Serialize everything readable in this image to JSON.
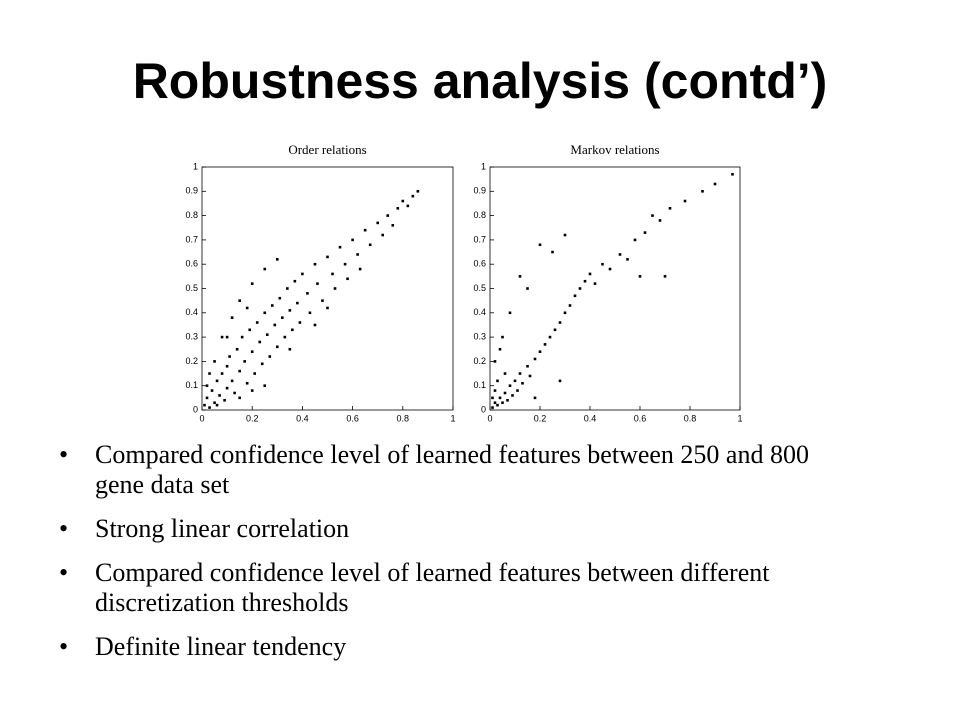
{
  "title": "Robustness analysis (contd’)",
  "chart_data": [
    {
      "type": "scatter",
      "title": "Order relations",
      "color": "#000000",
      "xlim": [
        0,
        1
      ],
      "ylim": [
        0,
        1
      ],
      "xticks": [
        0,
        0.2,
        0.4,
        0.6,
        0.8,
        1
      ],
      "yticks": [
        0,
        0.1,
        0.2,
        0.3,
        0.4,
        0.5,
        0.6,
        0.7,
        0.8,
        0.9,
        1
      ],
      "x": [
        0.01,
        0.02,
        0.03,
        0.04,
        0.05,
        0.06,
        0.07,
        0.08,
        0.09,
        0.1,
        0.1,
        0.11,
        0.12,
        0.13,
        0.14,
        0.15,
        0.16,
        0.17,
        0.18,
        0.19,
        0.2,
        0.21,
        0.22,
        0.23,
        0.24,
        0.25,
        0.26,
        0.27,
        0.28,
        0.29,
        0.3,
        0.31,
        0.32,
        0.33,
        0.34,
        0.35,
        0.36,
        0.37,
        0.38,
        0.39,
        0.4,
        0.42,
        0.43,
        0.45,
        0.46,
        0.48,
        0.5,
        0.52,
        0.53,
        0.55,
        0.57,
        0.58,
        0.6,
        0.62,
        0.63,
        0.65,
        0.67,
        0.7,
        0.72,
        0.74,
        0.76,
        0.78,
        0.8,
        0.82,
        0.84,
        0.86,
        0.05,
        0.08,
        0.12,
        0.15,
        0.2,
        0.25,
        0.3,
        0.03,
        0.1,
        0.18,
        0.35,
        0.45,
        0.5,
        0.15,
        0.25,
        0.02,
        0.06,
        0.2
      ],
      "values": [
        0.02,
        0.05,
        0.01,
        0.08,
        0.03,
        0.12,
        0.06,
        0.15,
        0.04,
        0.18,
        0.09,
        0.22,
        0.12,
        0.07,
        0.25,
        0.16,
        0.3,
        0.2,
        0.11,
        0.33,
        0.24,
        0.15,
        0.36,
        0.28,
        0.19,
        0.4,
        0.31,
        0.22,
        0.43,
        0.35,
        0.26,
        0.46,
        0.38,
        0.3,
        0.5,
        0.41,
        0.33,
        0.53,
        0.44,
        0.36,
        0.56,
        0.48,
        0.4,
        0.6,
        0.52,
        0.45,
        0.63,
        0.56,
        0.5,
        0.67,
        0.6,
        0.54,
        0.7,
        0.64,
        0.58,
        0.74,
        0.68,
        0.77,
        0.72,
        0.8,
        0.76,
        0.83,
        0.86,
        0.84,
        0.88,
        0.9,
        0.2,
        0.3,
        0.38,
        0.45,
        0.52,
        0.58,
        0.62,
        0.15,
        0.3,
        0.42,
        0.25,
        0.35,
        0.42,
        0.05,
        0.1,
        0.1,
        0.02,
        0.08
      ]
    },
    {
      "type": "scatter",
      "title": "Markov relations",
      "color": "#000000",
      "xlim": [
        0,
        1
      ],
      "ylim": [
        0,
        1
      ],
      "xticks": [
        0,
        0.2,
        0.4,
        0.6,
        0.8,
        1
      ],
      "yticks": [
        0,
        0.1,
        0.2,
        0.3,
        0.4,
        0.5,
        0.6,
        0.7,
        0.8,
        0.9,
        1
      ],
      "x": [
        0.01,
        0.02,
        0.03,
        0.04,
        0.05,
        0.06,
        0.07,
        0.08,
        0.09,
        0.1,
        0.11,
        0.12,
        0.13,
        0.15,
        0.16,
        0.18,
        0.2,
        0.22,
        0.24,
        0.26,
        0.28,
        0.3,
        0.32,
        0.34,
        0.36,
        0.38,
        0.4,
        0.42,
        0.45,
        0.48,
        0.52,
        0.55,
        0.58,
        0.62,
        0.68,
        0.72,
        0.78,
        0.85,
        0.9,
        0.97,
        0.05,
        0.08,
        0.12,
        0.15,
        0.2,
        0.25,
        0.3,
        0.02,
        0.04,
        0.28,
        0.18,
        0.6,
        0.65,
        0.7,
        0.02,
        0.01,
        0.03,
        0.06
      ],
      "values": [
        0.01,
        0.03,
        0.02,
        0.05,
        0.03,
        0.07,
        0.04,
        0.1,
        0.06,
        0.12,
        0.08,
        0.15,
        0.11,
        0.18,
        0.14,
        0.21,
        0.24,
        0.27,
        0.3,
        0.33,
        0.36,
        0.4,
        0.43,
        0.47,
        0.5,
        0.53,
        0.56,
        0.52,
        0.6,
        0.58,
        0.64,
        0.62,
        0.7,
        0.73,
        0.78,
        0.83,
        0.86,
        0.9,
        0.93,
        0.97,
        0.3,
        0.4,
        0.55,
        0.5,
        0.68,
        0.65,
        0.72,
        0.2,
        0.25,
        0.12,
        0.05,
        0.55,
        0.8,
        0.55,
        0.08,
        0.05,
        0.12,
        0.15
      ]
    }
  ],
  "bullets": [
    "Compared confidence level of learned features between 250 and 800 gene data set",
    "Strong linear correlation",
    "Compared confidence level of learned features between different discretization thresholds",
    "Definite linear tendency"
  ]
}
